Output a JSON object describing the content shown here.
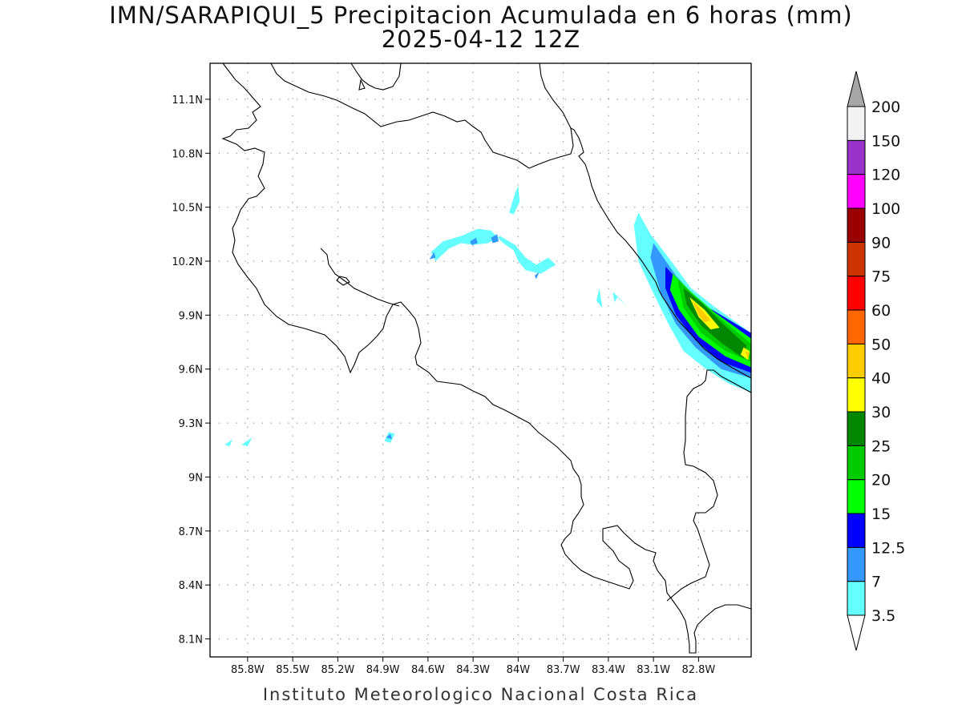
{
  "title": {
    "line1": "IMN/SARAPIQUI_5 Precipitacion Acumulada en 6 horas (mm)",
    "line2": "2025-04-12 12Z"
  },
  "credit": "Instituto Meteorologico Nacional Costa Rica",
  "map": {
    "lon_range": [
      -86.05,
      -82.45
    ],
    "lat_range": [
      8.0,
      11.3
    ],
    "lon_ticks": [
      {
        "value": -85.8,
        "label": "85.8W"
      },
      {
        "value": -85.5,
        "label": "85.5W"
      },
      {
        "value": -85.2,
        "label": "85.2W"
      },
      {
        "value": -84.9,
        "label": "84.9W"
      },
      {
        "value": -84.6,
        "label": "84.6W"
      },
      {
        "value": -84.3,
        "label": "84.3W"
      },
      {
        "value": -84.0,
        "label": "84W"
      },
      {
        "value": -83.7,
        "label": "83.7W"
      },
      {
        "value": -83.4,
        "label": "83.4W"
      },
      {
        "value": -83.1,
        "label": "83.1W"
      },
      {
        "value": -82.8,
        "label": "82.8W"
      }
    ],
    "lat_ticks": [
      {
        "value": 11.1,
        "label": "11.1N"
      },
      {
        "value": 10.8,
        "label": "10.8N"
      },
      {
        "value": 10.5,
        "label": "10.5N"
      },
      {
        "value": 10.2,
        "label": "10.2N"
      },
      {
        "value": 9.9,
        "label": "9.9N"
      },
      {
        "value": 9.6,
        "label": "9.6N"
      },
      {
        "value": 9.3,
        "label": "9.3N"
      },
      {
        "value": 9.0,
        "label": "9N"
      },
      {
        "value": 8.7,
        "label": "8.7N"
      },
      {
        "value": 8.4,
        "label": "8.4N"
      },
      {
        "value": 8.1,
        "label": "8.1N"
      }
    ],
    "grid": "dotted",
    "precip_cells": [
      {
        "level": 3.5,
        "points": [
          [
            -84.58,
            10.25
          ],
          [
            -84.5,
            10.31
          ],
          [
            -84.38,
            10.34
          ],
          [
            -84.27,
            10.38
          ],
          [
            -84.18,
            10.37
          ],
          [
            -84.1,
            10.3
          ],
          [
            -84.03,
            10.26
          ],
          [
            -84.0,
            10.2
          ],
          [
            -83.95,
            10.15
          ],
          [
            -83.85,
            10.13
          ],
          [
            -83.75,
            10.18
          ],
          [
            -83.8,
            10.22
          ],
          [
            -83.88,
            10.18
          ],
          [
            -83.95,
            10.22
          ],
          [
            -84.02,
            10.29
          ],
          [
            -84.12,
            10.34
          ],
          [
            -84.2,
            10.3
          ],
          [
            -84.3,
            10.29
          ],
          [
            -84.38,
            10.3
          ],
          [
            -84.46,
            10.27
          ],
          [
            -84.55,
            10.2
          ]
        ]
      },
      {
        "level": 7,
        "points": [
          [
            -84.59,
            10.21
          ],
          [
            -84.56,
            10.25
          ],
          [
            -84.55,
            10.22
          ]
        ]
      },
      {
        "level": 7,
        "points": [
          [
            -84.32,
            10.31
          ],
          [
            -84.28,
            10.33
          ],
          [
            -84.27,
            10.3
          ],
          [
            -84.31,
            10.29
          ]
        ]
      },
      {
        "level": 7,
        "points": [
          [
            -84.18,
            10.33
          ],
          [
            -84.14,
            10.35
          ],
          [
            -84.13,
            10.31
          ],
          [
            -84.17,
            10.3
          ]
        ]
      },
      {
        "level": 7,
        "points": [
          [
            -83.89,
            10.12
          ],
          [
            -83.86,
            10.14
          ],
          [
            -83.88,
            10.1
          ]
        ]
      },
      {
        "level": 3.5,
        "points": [
          [
            -84.06,
            10.47
          ],
          [
            -84.02,
            10.58
          ],
          [
            -84.0,
            10.62
          ],
          [
            -83.99,
            10.53
          ],
          [
            -84.03,
            10.46
          ]
        ]
      },
      {
        "level": 3.5,
        "points": [
          [
            -83.48,
            9.98
          ],
          [
            -83.46,
            10.05
          ],
          [
            -83.44,
            9.94
          ]
        ]
      },
      {
        "level": 3.5,
        "points": [
          [
            -83.37,
            10.03
          ],
          [
            -83.31,
            9.98
          ],
          [
            -83.28,
            9.95
          ],
          [
            -83.34,
            10.0
          ],
          [
            -83.36,
            9.97
          ]
        ]
      },
      {
        "level": 3.5,
        "points": [
          [
            -84.89,
            9.2
          ],
          [
            -84.86,
            9.25
          ],
          [
            -84.82,
            9.24
          ],
          [
            -84.85,
            9.19
          ]
        ]
      },
      {
        "level": 7,
        "points": [
          [
            -84.88,
            9.22
          ],
          [
            -84.85,
            9.24
          ],
          [
            -84.84,
            9.21
          ]
        ]
      },
      {
        "level": 3.5,
        "points": [
          [
            -85.95,
            9.18
          ],
          [
            -85.9,
            9.21
          ],
          [
            -85.92,
            9.17
          ]
        ]
      },
      {
        "level": 3.5,
        "points": [
          [
            -85.84,
            9.18
          ],
          [
            -85.77,
            9.22
          ],
          [
            -85.8,
            9.17
          ]
        ]
      },
      {
        "level": 3.5,
        "points": [
          [
            -83.2,
            10.47
          ],
          [
            -83.12,
            10.35
          ],
          [
            -83.0,
            10.22
          ],
          [
            -82.85,
            10.05
          ],
          [
            -82.7,
            9.95
          ],
          [
            -82.45,
            9.8
          ],
          [
            -82.45,
            9.47
          ],
          [
            -82.6,
            9.52
          ],
          [
            -82.75,
            9.6
          ],
          [
            -82.9,
            9.7
          ],
          [
            -83.0,
            9.85
          ],
          [
            -83.1,
            10.02
          ],
          [
            -83.2,
            10.2
          ],
          [
            -83.23,
            10.4
          ]
        ]
      },
      {
        "level": 7,
        "points": [
          [
            -83.1,
            10.3
          ],
          [
            -82.95,
            10.12
          ],
          [
            -82.8,
            9.98
          ],
          [
            -82.6,
            9.85
          ],
          [
            -82.45,
            9.76
          ],
          [
            -82.45,
            9.55
          ],
          [
            -82.65,
            9.6
          ],
          [
            -82.82,
            9.72
          ],
          [
            -82.95,
            9.85
          ],
          [
            -83.05,
            10.02
          ],
          [
            -83.12,
            10.22
          ]
        ]
      },
      {
        "level": 12.5,
        "points": [
          [
            -83.02,
            10.17
          ],
          [
            -82.9,
            10.06
          ],
          [
            -82.75,
            9.95
          ],
          [
            -82.45,
            9.8
          ],
          [
            -82.45,
            9.58
          ],
          [
            -82.65,
            9.64
          ],
          [
            -82.82,
            9.76
          ],
          [
            -82.95,
            9.9
          ],
          [
            -83.02,
            10.05
          ]
        ]
      },
      {
        "level": 15,
        "points": [
          [
            -82.97,
            10.13
          ],
          [
            -82.85,
            10.03
          ],
          [
            -82.7,
            9.92
          ],
          [
            -82.45,
            9.77
          ],
          [
            -82.45,
            9.61
          ],
          [
            -82.62,
            9.67
          ],
          [
            -82.8,
            9.78
          ],
          [
            -82.93,
            9.93
          ],
          [
            -82.99,
            10.04
          ]
        ]
      },
      {
        "level": 20,
        "points": [
          [
            -82.94,
            10.1
          ],
          [
            -82.82,
            10.0
          ],
          [
            -82.68,
            9.9
          ],
          [
            -82.45,
            9.74
          ],
          [
            -82.45,
            9.64
          ],
          [
            -82.62,
            9.7
          ],
          [
            -82.78,
            9.8
          ],
          [
            -82.9,
            9.94
          ]
        ]
      },
      {
        "level": 25,
        "points": [
          [
            -82.9,
            10.05
          ],
          [
            -82.78,
            9.97
          ],
          [
            -82.65,
            9.86
          ],
          [
            -82.48,
            9.73
          ],
          [
            -82.5,
            9.66
          ],
          [
            -82.64,
            9.74
          ],
          [
            -82.78,
            9.84
          ],
          [
            -82.88,
            9.96
          ]
        ]
      },
      {
        "level": 30,
        "points": [
          [
            -82.86,
            10.0
          ],
          [
            -82.76,
            9.93
          ],
          [
            -82.66,
            9.83
          ],
          [
            -82.72,
            9.82
          ],
          [
            -82.8,
            9.89
          ]
        ]
      },
      {
        "level": 40,
        "points": [
          [
            -82.84,
            9.98
          ],
          [
            -82.77,
            9.92
          ],
          [
            -82.72,
            9.87
          ],
          [
            -82.76,
            9.86
          ],
          [
            -82.8,
            9.9
          ]
        ]
      },
      {
        "level": 30,
        "points": [
          [
            -82.5,
            9.72
          ],
          [
            -82.46,
            9.7
          ],
          [
            -82.47,
            9.65
          ],
          [
            -82.52,
            9.68
          ]
        ]
      },
      {
        "level": 40,
        "points": [
          [
            -82.49,
            9.7
          ],
          [
            -82.46,
            9.69
          ],
          [
            -82.47,
            9.66
          ]
        ]
      }
    ]
  },
  "colorbar": {
    "levels": [
      {
        "label": "3.5",
        "color": "#66ffff"
      },
      {
        "label": "7",
        "color": "#3399ff"
      },
      {
        "label": "12.5",
        "color": "#0000ff"
      },
      {
        "label": "15",
        "color": "#00ff00"
      },
      {
        "label": "20",
        "color": "#00cc00"
      },
      {
        "label": "25",
        "color": "#008800"
      },
      {
        "label": "30",
        "color": "#ffff00"
      },
      {
        "label": "40",
        "color": "#ffcc00"
      },
      {
        "label": "50",
        "color": "#ff6600"
      },
      {
        "label": "60",
        "color": "#ff0000"
      },
      {
        "label": "75",
        "color": "#cc3300"
      },
      {
        "label": "90",
        "color": "#990000"
      },
      {
        "label": "100",
        "color": "#ff00ff"
      },
      {
        "label": "120",
        "color": "#9933cc"
      },
      {
        "label": "150",
        "color": "#f2f2f2"
      },
      {
        "label": "200",
        "color": "#a6a6a6"
      }
    ],
    "bottom_arrow_color": "#ffffff",
    "top_arrow_color": "#a6a6a6"
  }
}
